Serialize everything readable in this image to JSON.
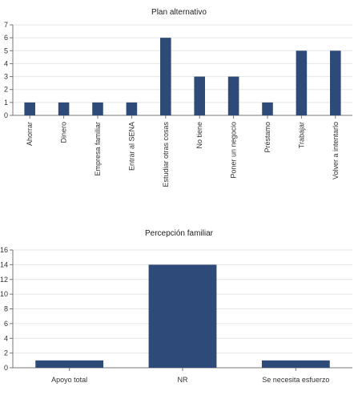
{
  "chart_data": [
    {
      "type": "bar",
      "title": "Plan alternativo",
      "xlabel": "",
      "ylabel": "",
      "categories": [
        "Ahorrar",
        "Dinero",
        "Empresa familiar",
        "Entrar al SENA",
        "Estudiar otras cosas",
        "No tiene",
        "Poner un negocio",
        "Préstamo",
        "Trabajar",
        "Volver a intentarlo"
      ],
      "values": [
        1,
        1,
        1,
        1,
        6,
        3,
        3,
        1,
        5,
        5
      ],
      "ylim": [
        0,
        7
      ],
      "yticks": [
        0,
        1,
        2,
        3,
        4,
        5,
        6,
        7
      ],
      "grid": true,
      "legend": "none",
      "bar_color": "#2e4a78"
    },
    {
      "type": "bar",
      "title": "Percepción familiar",
      "xlabel": "",
      "ylabel": "",
      "categories": [
        "Apoyo total",
        "NR",
        "Se necesita esfuerzo"
      ],
      "values": [
        1,
        14,
        1
      ],
      "ylim": [
        0,
        16
      ],
      "yticks": [
        0,
        2,
        4,
        6,
        8,
        10,
        12,
        14,
        16
      ],
      "grid": true,
      "legend": "none",
      "bar_color": "#2e4a78"
    }
  ]
}
